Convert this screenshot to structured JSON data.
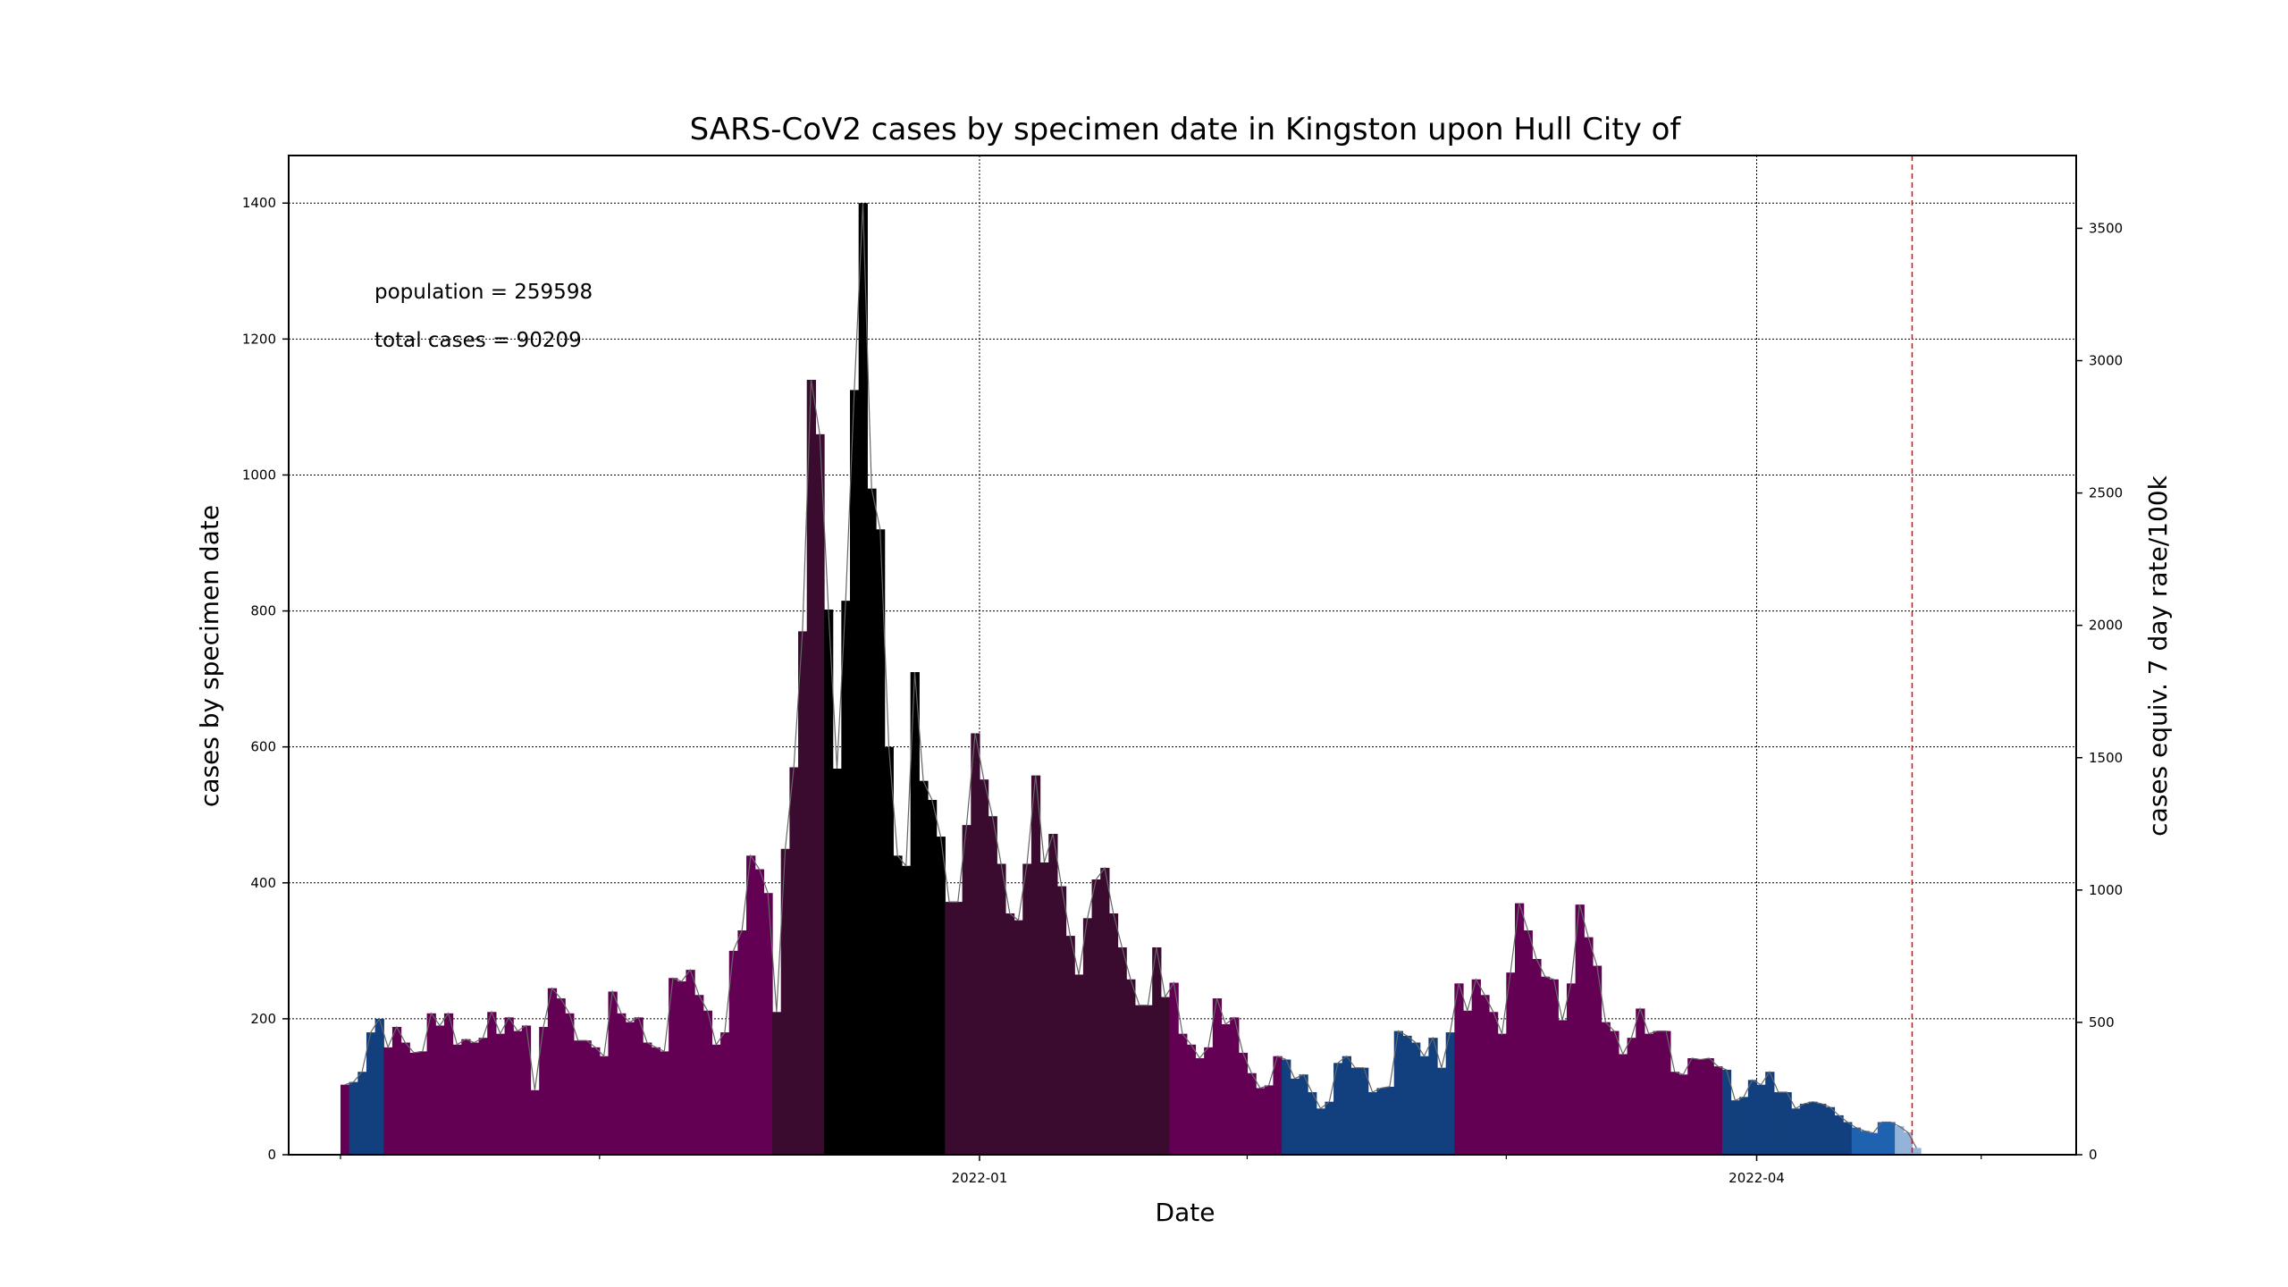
{
  "chart_data": {
    "type": "bar",
    "title": "SARS-CoV2 cases by specimen date in Kingston upon Hull City of",
    "xlabel": "Date",
    "ylabel": "cases by specimen date",
    "ylabel_right": "cases equiv. 7 day rate/100k",
    "ylim": [
      0,
      1470
    ],
    "ylim_right": [
      0,
      3775
    ],
    "yticks": [
      0,
      200,
      400,
      600,
      800,
      1000,
      1200,
      1400
    ],
    "yticks_right": [
      0,
      500,
      1000,
      1500,
      2000,
      2500,
      3000,
      3500
    ],
    "x_start_date": "2021-10-19",
    "x_range_days": [
      -6,
      201
    ],
    "x_major_ticks": [
      {
        "label": "2022-01",
        "day": 74
      },
      {
        "label": "2022-04",
        "day": 164
      }
    ],
    "x_minor_tick_days": [
      0,
      30,
      105,
      135,
      190
    ],
    "cutoff_line_day": 182,
    "grid": true,
    "annotations": [
      "population = 259598",
      "total cases = 90209"
    ],
    "values": [
      103,
      107,
      122,
      180,
      200,
      158,
      188,
      165,
      150,
      152,
      208,
      190,
      208,
      162,
      170,
      165,
      172,
      210,
      178,
      202,
      182,
      190,
      95,
      188,
      245,
      230,
      208,
      168,
      168,
      158,
      145,
      240,
      208,
      195,
      202,
      165,
      158,
      152,
      260,
      255,
      272,
      235,
      212,
      162,
      180,
      300,
      330,
      440,
      420,
      385,
      210,
      450,
      570,
      770,
      1140,
      1060,
      802,
      568,
      815,
      1125,
      1400,
      980,
      920,
      600,
      440,
      425,
      710,
      550,
      522,
      468,
      372,
      372,
      485,
      620,
      552,
      498,
      428,
      355,
      345,
      428,
      558,
      430,
      472,
      395,
      322,
      265,
      348,
      405,
      422,
      355,
      305,
      258,
      220,
      220,
      305,
      232,
      253,
      178,
      162,
      142,
      158,
      230,
      192,
      202,
      150,
      120,
      98,
      102,
      145,
      140,
      112,
      118,
      92,
      68,
      78,
      135,
      145,
      128,
      128,
      92,
      98,
      100,
      182,
      175,
      165,
      145,
      172,
      128,
      180,
      252,
      212,
      258,
      235,
      210,
      178,
      268,
      370,
      330,
      288,
      262,
      258,
      198,
      252,
      368,
      320,
      278,
      195,
      182,
      148,
      172,
      215,
      178,
      182,
      182,
      122,
      118,
      142,
      140,
      142,
      130,
      125,
      80,
      85,
      110,
      103,
      122,
      92,
      92,
      68,
      75,
      78,
      75,
      70,
      58,
      48,
      40,
      35,
      32,
      48,
      48,
      42,
      33,
      10
    ],
    "colors": [
      "#630054",
      "#123f7d",
      "#123f7d",
      "#123f7d",
      "#123f7d",
      "#630054",
      "#630054",
      "#630054",
      "#630054",
      "#630054",
      "#630054",
      "#630054",
      "#630054",
      "#630054",
      "#630054",
      "#630054",
      "#630054",
      "#630054",
      "#630054",
      "#630054",
      "#630054",
      "#630054",
      "#630054",
      "#630054",
      "#630054",
      "#630054",
      "#630054",
      "#630054",
      "#630054",
      "#630054",
      "#630054",
      "#630054",
      "#630054",
      "#630054",
      "#630054",
      "#630054",
      "#630054",
      "#630054",
      "#630054",
      "#630054",
      "#630054",
      "#630054",
      "#630054",
      "#630054",
      "#630054",
      "#630054",
      "#630054",
      "#630054",
      "#630054",
      "#630054",
      "#3b0a2f",
      "#3b0a2f",
      "#3b0a2f",
      "#3b0a2f",
      "#3b0a2f",
      "#3b0a2f",
      "#000000",
      "#000000",
      "#000000",
      "#000000",
      "#000000",
      "#000000",
      "#000000",
      "#000000",
      "#000000",
      "#000000",
      "#000000",
      "#000000",
      "#000000",
      "#000000",
      "#3b0a2f",
      "#3b0a2f",
      "#3b0a2f",
      "#3b0a2f",
      "#3b0a2f",
      "#3b0a2f",
      "#3b0a2f",
      "#3b0a2f",
      "#3b0a2f",
      "#3b0a2f",
      "#3b0a2f",
      "#3b0a2f",
      "#3b0a2f",
      "#3b0a2f",
      "#3b0a2f",
      "#3b0a2f",
      "#3b0a2f",
      "#3b0a2f",
      "#3b0a2f",
      "#3b0a2f",
      "#3b0a2f",
      "#3b0a2f",
      "#3b0a2f",
      "#3b0a2f",
      "#3b0a2f",
      "#3b0a2f",
      "#630054",
      "#630054",
      "#630054",
      "#630054",
      "#630054",
      "#630054",
      "#630054",
      "#630054",
      "#630054",
      "#630054",
      "#630054",
      "#630054",
      "#630054",
      "#123f7d",
      "#123f7d",
      "#123f7d",
      "#123f7d",
      "#123f7d",
      "#123f7d",
      "#123f7d",
      "#123f7d",
      "#123f7d",
      "#123f7d",
      "#123f7d",
      "#123f7d",
      "#123f7d",
      "#123f7d",
      "#123f7d",
      "#123f7d",
      "#123f7d",
      "#123f7d",
      "#123f7d",
      "#123f7d",
      "#630054",
      "#630054",
      "#630054",
      "#630054",
      "#630054",
      "#630054",
      "#630054",
      "#630054",
      "#630054",
      "#630054",
      "#630054",
      "#630054",
      "#630054",
      "#630054",
      "#630054",
      "#630054",
      "#630054",
      "#630054",
      "#630054",
      "#630054",
      "#630054",
      "#630054",
      "#630054",
      "#630054",
      "#630054",
      "#630054",
      "#630054",
      "#630054",
      "#630054",
      "#630054",
      "#630054",
      "#123f7d",
      "#123f7d",
      "#123f7d",
      "#123f7d",
      "#123f7d",
      "#123f7d",
      "#123f7d",
      "#123f7d",
      "#123f7d",
      "#123f7d",
      "#123f7d",
      "#123f7d",
      "#123f7d",
      "#123f7d",
      "#123f7d",
      "#1f62b0",
      "#1f62b0",
      "#1f62b0",
      "#1f62b0",
      "#1f62b0",
      "#93b4d8",
      "#93b4d8",
      "#93b4d8",
      "#93b4d8",
      "#93b4d8"
    ],
    "rolling_line_color": "#666666",
    "cutoff_line_color": "#ff0000"
  }
}
